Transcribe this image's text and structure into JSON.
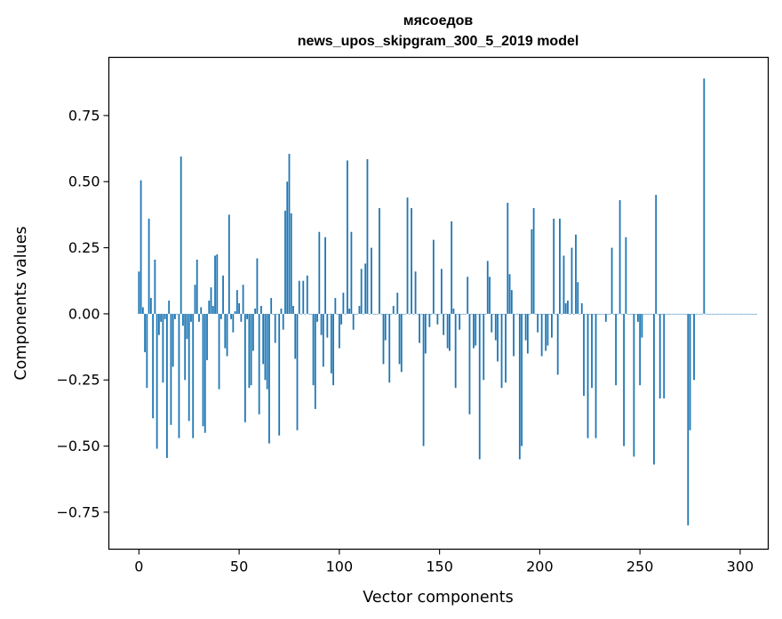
{
  "chart_data": {
    "type": "bar",
    "title_lines": [
      "мясоедов",
      "news_upos_skipgram_300_5_2019 model"
    ],
    "xlabel": "Vector components",
    "ylabel": "Components values",
    "xlim": [
      -15,
      314
    ],
    "ylim": [
      -0.89,
      0.97
    ],
    "xticks": [
      0,
      50,
      100,
      150,
      200,
      250,
      300
    ],
    "yticks": [
      -0.75,
      -0.5,
      -0.25,
      0.0,
      0.25,
      0.5,
      0.75
    ],
    "ytick_labels": [
      "−0.75",
      "−0.50",
      "−0.25",
      "0.00",
      "0.25",
      "0.50",
      "0.75"
    ],
    "bar_color": "#1f77b4",
    "grid": false,
    "values": [
      0.16,
      0.505,
      0.025,
      -0.145,
      -0.28,
      0.36,
      0.06,
      -0.395,
      0.205,
      -0.51,
      -0.08,
      -0.03,
      -0.26,
      -0.02,
      -0.545,
      0.05,
      -0.42,
      -0.2,
      -0.02,
      0.0,
      -0.47,
      0.595,
      -0.045,
      -0.25,
      -0.095,
      -0.405,
      -0.03,
      -0.47,
      0.11,
      0.205,
      -0.03,
      0.025,
      -0.425,
      -0.45,
      -0.175,
      0.05,
      0.1,
      0.03,
      0.22,
      0.225,
      -0.285,
      -0.02,
      0.145,
      -0.13,
      -0.16,
      0.375,
      -0.02,
      -0.07,
      0.01,
      0.09,
      0.04,
      -0.03,
      0.11,
      -0.41,
      -0.02,
      -0.28,
      -0.27,
      -0.14,
      0.02,
      0.21,
      -0.38,
      0.03,
      -0.19,
      -0.25,
      -0.285,
      -0.49,
      0.06,
      0.0,
      -0.11,
      0.0,
      -0.46,
      0.02,
      -0.06,
      0.39,
      0.5,
      0.605,
      0.38,
      0.03,
      -0.17,
      -0.44,
      0.125,
      0.0,
      0.125,
      0.0,
      0.145,
      0.0,
      0.0,
      -0.27,
      -0.36,
      -0.03,
      0.31,
      -0.08,
      -0.2,
      0.29,
      -0.09,
      0.0,
      -0.225,
      -0.27,
      0.06,
      0.0,
      -0.13,
      -0.04,
      0.08,
      0.0,
      0.58,
      0.02,
      0.31,
      -0.06,
      0.0,
      0.0,
      0.03,
      0.17,
      0.0,
      0.19,
      0.585,
      0.0,
      0.25,
      0.0,
      0.0,
      0.0,
      0.4,
      0.0,
      -0.19,
      -0.1,
      0.0,
      -0.26,
      0.0,
      0.03,
      0.0,
      0.08,
      -0.19,
      -0.22,
      0.0,
      0.0,
      0.44,
      0.0,
      0.4,
      0.0,
      0.16,
      0.0,
      -0.11,
      0.0,
      -0.5,
      -0.15,
      0.0,
      -0.05,
      0.0,
      0.28,
      0.0,
      -0.04,
      0.0,
      0.17,
      -0.08,
      0.0,
      -0.13,
      -0.14,
      0.35,
      0.02,
      -0.28,
      0.0,
      -0.06,
      0.0,
      0.0,
      0.0,
      0.14,
      -0.38,
      0.0,
      -0.13,
      -0.12,
      0.0,
      -0.55,
      0.0,
      -0.25,
      0.0,
      0.2,
      0.14,
      -0.07,
      0.0,
      -0.1,
      -0.18,
      0.0,
      -0.28,
      0.0,
      -0.26,
      0.42,
      0.15,
      0.09,
      -0.16,
      0.0,
      0.0,
      -0.55,
      -0.5,
      0.0,
      -0.1,
      -0.15,
      0.0,
      0.32,
      0.4,
      0.0,
      -0.07,
      0.0,
      -0.16,
      0.0,
      -0.14,
      -0.12,
      0.0,
      -0.09,
      0.36,
      0.0,
      -0.23,
      0.36,
      0.0,
      0.22,
      0.04,
      0.05,
      0.0,
      0.25,
      0.0,
      0.3,
      0.12,
      0.0,
      0.04,
      -0.31,
      0.0,
      -0.47,
      0.0,
      -0.28,
      0.0,
      -0.47,
      0.0,
      0.0,
      0.0,
      0.0,
      -0.03,
      0.0,
      0.0,
      0.25,
      0.0,
      -0.27,
      0.0,
      0.43,
      0.0,
      -0.5,
      0.29,
      0.0,
      0.0,
      0.0,
      -0.54,
      0.0,
      -0.03,
      -0.27,
      -0.09,
      0.0,
      0.0,
      0.0,
      0.0,
      0.0,
      -0.57,
      0.45,
      0.0,
      -0.32,
      0.0,
      -0.32,
      0.0,
      0.0,
      0.0,
      0.0,
      0.0,
      0.0,
      0.0,
      0.0,
      0.0,
      0.0,
      0.0,
      -0.8,
      -0.44,
      0.0,
      -0.25,
      0.0,
      0.0,
      0.0,
      0.0,
      0.89,
      0.0,
      0.0,
      0.0,
      0.0,
      0.0,
      0.0,
      0.0,
      0.0,
      0.0,
      0.0,
      0.0,
      0.0,
      0.0,
      0.0,
      0.0,
      0.0,
      0.0,
      0.0,
      0.0,
      0.0,
      0.0,
      0.0,
      0.0,
      0.0,
      0.0,
      0.0
    ]
  }
}
